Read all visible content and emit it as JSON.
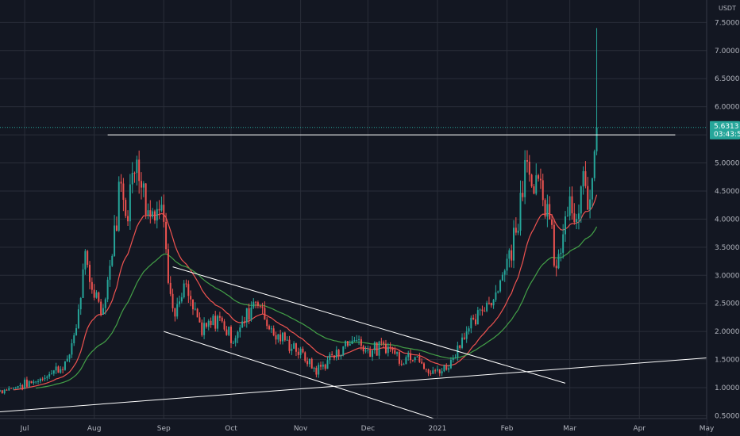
{
  "chart_data": {
    "type": "candlestick",
    "quote_unit": "USDT",
    "x_ticks": [
      "Jul",
      "Aug",
      "Sep",
      "Oct",
      "Nov",
      "Dec",
      "2021",
      "Feb",
      "Mar",
      "Apr",
      "May"
    ],
    "y_ticks": [
      "0.5000",
      "1.0000",
      "1.5000",
      "2.0000",
      "2.5000",
      "3.0000",
      "3.5000",
      "4.0000",
      "4.5000",
      "5.0000",
      "5.5000",
      "6.0000",
      "6.5000",
      "7.0000",
      "7.5000"
    ],
    "xlim": [
      "2020-06-20",
      "2021-05-01"
    ],
    "ylim": [
      0.45,
      7.9
    ],
    "grid": true,
    "last_price": {
      "value": 5.6313,
      "countdown": "03:43:57"
    },
    "colors": {
      "up": "#26a69a",
      "down": "#ef5350",
      "ema_fast": "#ef5350",
      "ema_slow": "#43a047",
      "background": "#131722",
      "lines": "#ffffff"
    },
    "ema_periods": [
      20,
      50
    ],
    "price_path": [
      [
        "2020-06-20",
        0.95
      ],
      [
        "2020-07-05",
        1.1
      ],
      [
        "2020-07-20",
        1.45
      ],
      [
        "2020-07-28",
        3.2
      ],
      [
        "2020-08-02",
        2.6
      ],
      [
        "2020-08-05",
        2.4
      ],
      [
        "2020-08-12",
        4.5
      ],
      [
        "2020-08-16",
        4.3
      ],
      [
        "2020-08-20",
        5.2
      ],
      [
        "2020-08-25",
        4.2
      ],
      [
        "2020-09-01",
        4.1
      ],
      [
        "2020-09-03",
        3.1
      ],
      [
        "2020-09-06",
        2.3
      ],
      [
        "2020-09-10",
        2.8
      ],
      [
        "2020-09-18",
        2.0
      ],
      [
        "2020-09-26",
        2.25
      ],
      [
        "2020-10-02",
        1.85
      ],
      [
        "2020-10-12",
        2.65
      ],
      [
        "2020-10-20",
        1.95
      ],
      [
        "2020-10-30",
        1.7
      ],
      [
        "2020-11-08",
        1.3
      ],
      [
        "2020-11-15",
        1.55
      ],
      [
        "2020-11-25",
        1.9
      ],
      [
        "2020-12-02",
        1.65
      ],
      [
        "2020-12-10",
        1.75
      ],
      [
        "2020-12-16",
        1.5
      ],
      [
        "2020-12-23",
        1.65
      ],
      [
        "2020-12-27",
        1.25
      ],
      [
        "2021-01-05",
        1.35
      ],
      [
        "2021-01-12",
        1.9
      ],
      [
        "2021-01-20",
        2.3
      ],
      [
        "2021-01-28",
        2.8
      ],
      [
        "2021-02-05",
        3.8
      ],
      [
        "2021-02-09",
        5.2
      ],
      [
        "2021-02-13",
        4.7
      ],
      [
        "2021-02-19",
        4.2
      ],
      [
        "2021-02-23",
        3.1
      ],
      [
        "2021-02-28",
        4.2
      ],
      [
        "2021-03-04",
        3.9
      ],
      [
        "2021-03-07",
        4.6
      ],
      [
        "2021-03-10",
        4.2
      ],
      [
        "2021-03-12",
        5.4
      ],
      [
        "2021-03-13",
        5.63
      ]
    ],
    "annotations": [
      {
        "type": "horizontal_segment",
        "price": 5.5,
        "from": "2020-08-07",
        "to": "2021-04-17"
      },
      {
        "type": "trend_line",
        "points": [
          [
            "2020-09-05",
            3.15
          ],
          [
            "2021-02-27",
            1.08
          ]
        ]
      },
      {
        "type": "trend_line",
        "points": [
          [
            "2020-09-01",
            2.0
          ],
          [
            "2021-01-01",
            0.43
          ]
        ]
      },
      {
        "type": "trend_line",
        "points": [
          [
            "2020-06-20",
            0.57
          ],
          [
            "2021-05-01",
            1.53
          ]
        ]
      }
    ]
  }
}
